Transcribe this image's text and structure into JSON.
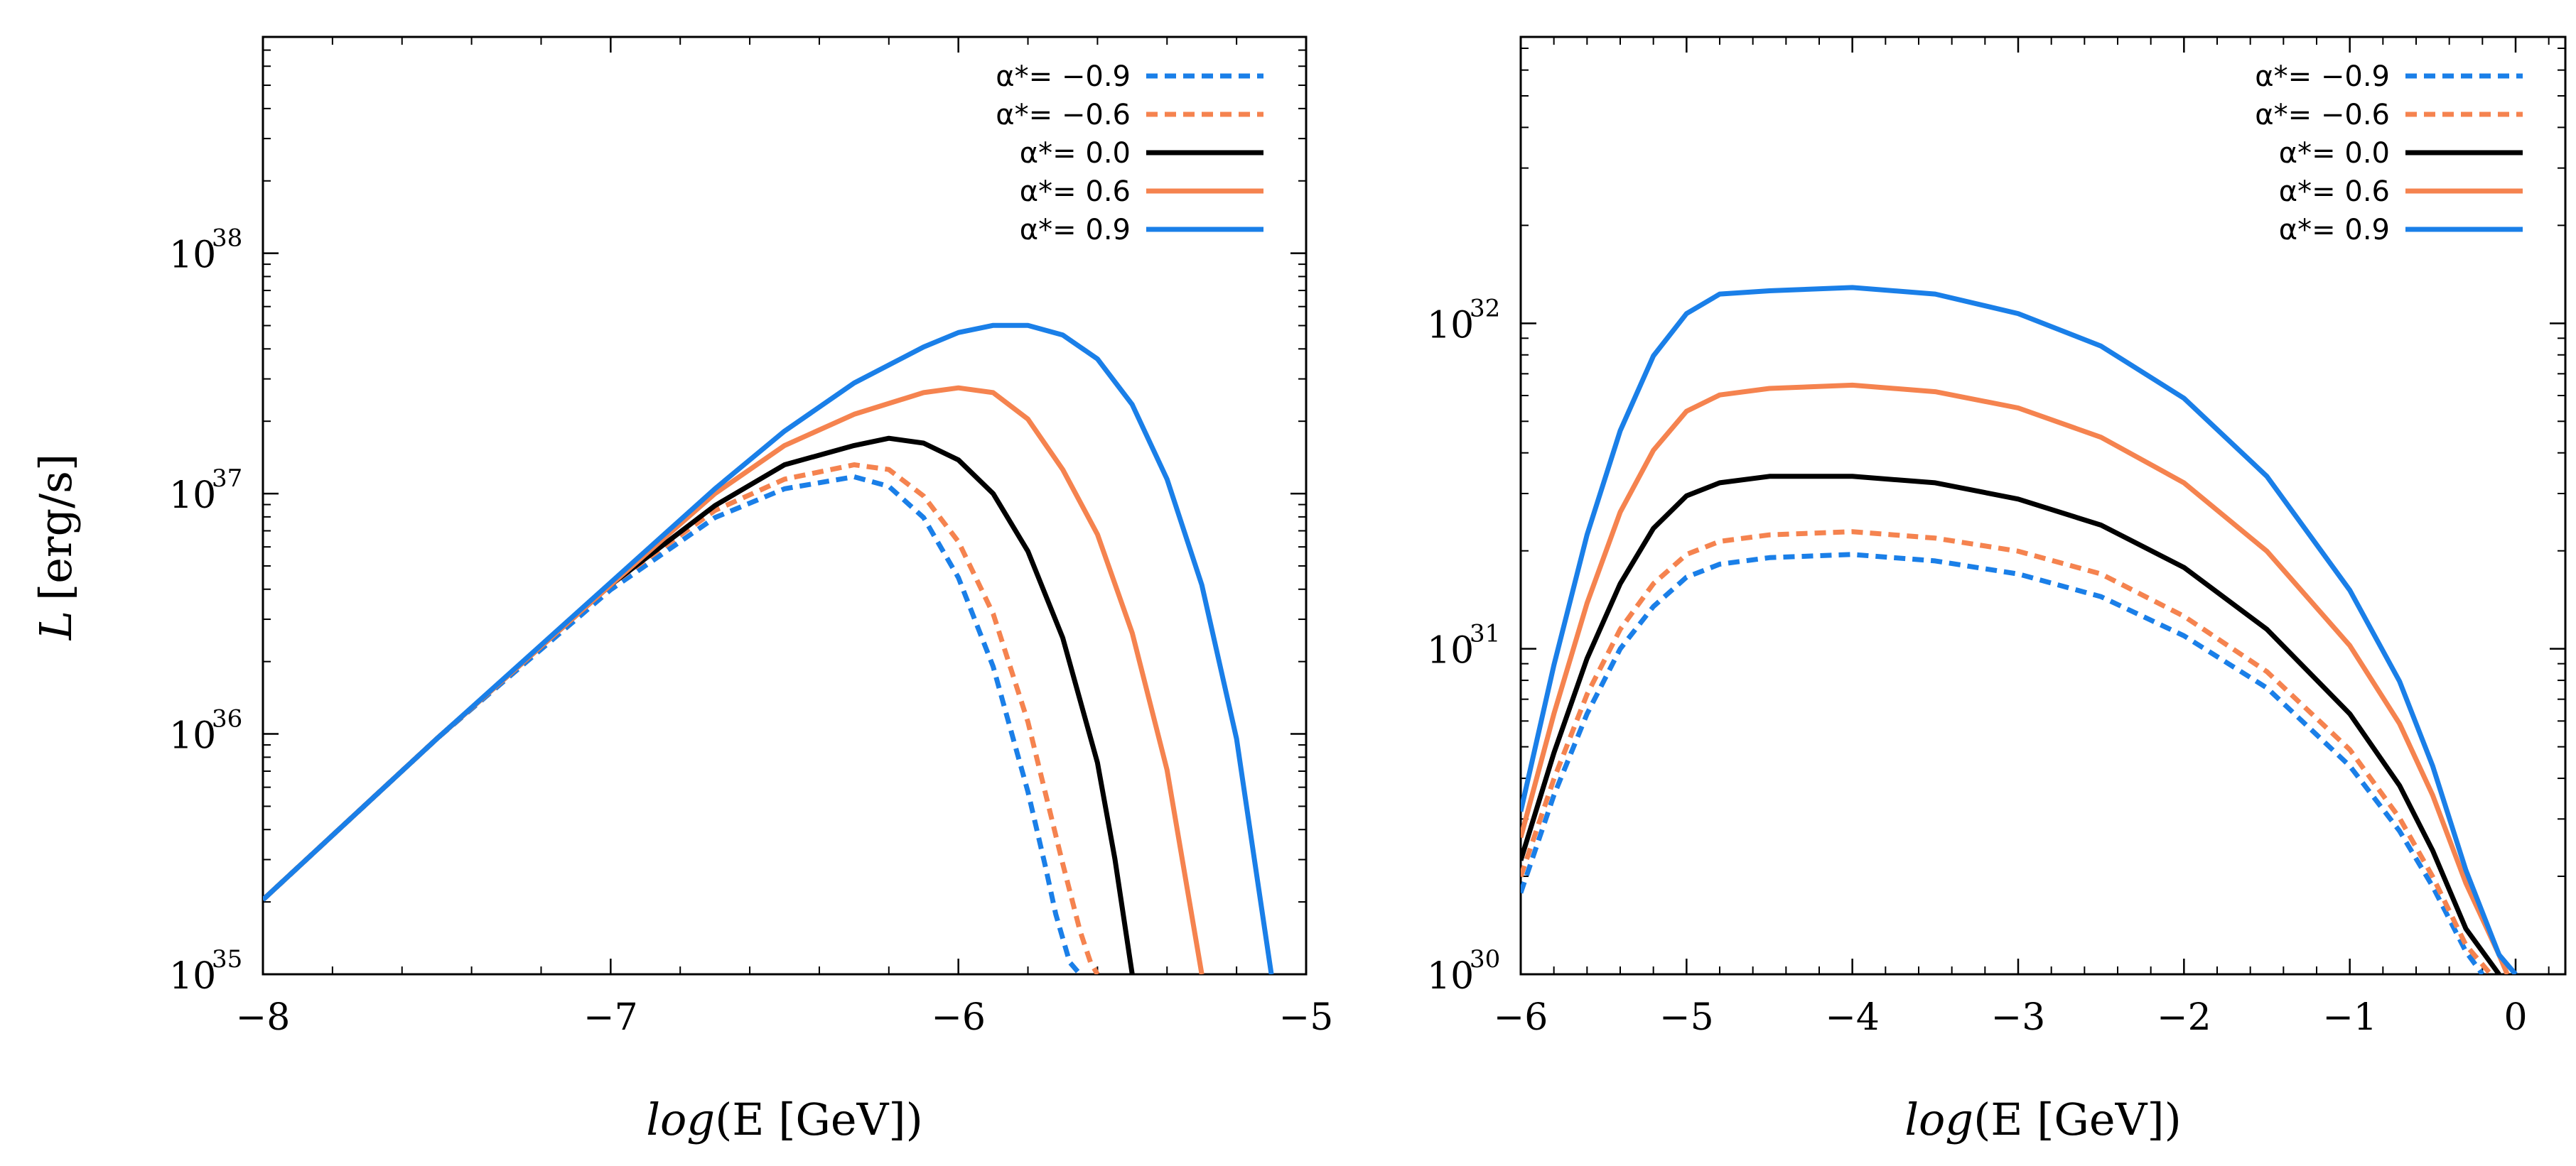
{
  "ylabel_main": "L",
  "ylabel_unit": "[erg/s]",
  "series_styles": [
    {
      "name": "α*= −0.9",
      "color": "#1a7fe8",
      "dashed": true
    },
    {
      "name": "α*= −0.6",
      "color": "#f5834f",
      "dashed": true
    },
    {
      "name": "α*=   0.0",
      "color": "#000000",
      "dashed": false
    },
    {
      "name": "α*=   0.6",
      "color": "#f5834f",
      "dashed": false
    },
    {
      "name": "α*=   0.9",
      "color": "#1a7fe8",
      "dashed": false
    }
  ],
  "chart_data": [
    {
      "type": "line",
      "xlabel_italic": "log",
      "xlabel_rest": "(E [GeV])",
      "ylabel": "L [erg/s]",
      "xlim": [
        -8,
        -5
      ],
      "ylim_log10": [
        35,
        38.9
      ],
      "y_scale": "log",
      "x_ticks": [
        -8,
        -7,
        -6,
        -5
      ],
      "x_tick_labels": [
        "−8",
        "−7",
        "−6",
        "−5"
      ],
      "y_ticks": [
        35,
        36,
        37,
        38
      ],
      "y_tick_base": "10",
      "y_tick_exponents": [
        "35",
        "36",
        "37",
        "38"
      ],
      "legend_position": "top-right",
      "series": [
        {
          "name": "α*= −0.9",
          "x": [
            -8,
            -7.5,
            -7,
            -6.7,
            -6.5,
            -6.3,
            -6.2,
            -6.1,
            -6.0,
            -5.9,
            -5.8,
            -5.75,
            -5.72,
            -5.68,
            -5.65
          ],
          "log10y": [
            35.31,
            35.98,
            36.6,
            36.9,
            37.02,
            37.07,
            37.03,
            36.9,
            36.65,
            36.28,
            35.76,
            35.45,
            35.25,
            35.05,
            35.0
          ]
        },
        {
          "name": "α*= −0.6",
          "x": [
            -8,
            -7.5,
            -7,
            -6.7,
            -6.5,
            -6.3,
            -6.2,
            -6.1,
            -6.0,
            -5.9,
            -5.8,
            -5.7,
            -5.65,
            -5.62,
            -5.6
          ],
          "log10y": [
            35.31,
            35.98,
            36.62,
            36.93,
            37.06,
            37.12,
            37.1,
            36.99,
            36.8,
            36.5,
            36.05,
            35.46,
            35.18,
            35.05,
            35.0
          ]
        },
        {
          "name": "α*=   0.0",
          "x": [
            -8,
            -7.5,
            -7,
            -6.7,
            -6.5,
            -6.3,
            -6.2,
            -6.1,
            -6.0,
            -5.9,
            -5.8,
            -5.7,
            -5.6,
            -5.55,
            -5.5
          ],
          "log10y": [
            35.31,
            35.98,
            36.62,
            36.95,
            37.12,
            37.2,
            37.23,
            37.21,
            37.14,
            37.0,
            36.76,
            36.4,
            35.88,
            35.48,
            35.0
          ]
        },
        {
          "name": "α*=   0.6",
          "x": [
            -8,
            -7.5,
            -7,
            -6.7,
            -6.5,
            -6.3,
            -6.1,
            -6.0,
            -5.9,
            -5.8,
            -5.7,
            -5.6,
            -5.5,
            -5.4,
            -5.3
          ],
          "log10y": [
            35.31,
            35.98,
            36.62,
            37.0,
            37.2,
            37.33,
            37.42,
            37.44,
            37.42,
            37.31,
            37.1,
            36.83,
            36.42,
            35.85,
            35.0
          ]
        },
        {
          "name": "α*=   0.9",
          "x": [
            -8,
            -7.5,
            -7,
            -6.7,
            -6.5,
            -6.3,
            -6.1,
            -6.0,
            -5.9,
            -5.8,
            -5.7,
            -5.6,
            -5.5,
            -5.4,
            -5.3,
            -5.2,
            -5.1
          ],
          "log10y": [
            35.31,
            35.98,
            36.63,
            37.02,
            37.26,
            37.46,
            37.61,
            37.67,
            37.7,
            37.7,
            37.66,
            37.56,
            37.37,
            37.06,
            36.62,
            35.98,
            35.0
          ]
        }
      ]
    },
    {
      "type": "line",
      "xlabel_italic": "log",
      "xlabel_rest": "(E [GeV])",
      "ylabel": "L [erg/s]",
      "xlim": [
        -6,
        0.3
      ],
      "ylim_log10": [
        30,
        32.88
      ],
      "y_scale": "log",
      "x_ticks": [
        -6,
        -5,
        -4,
        -3,
        -2,
        -1,
        0
      ],
      "x_tick_labels": [
        "−6",
        "−5",
        "−4",
        "−3",
        "−2",
        "−1",
        "0"
      ],
      "y_ticks": [
        30,
        31,
        32
      ],
      "y_tick_base": "10",
      "y_tick_exponents": [
        "30",
        "31",
        "32"
      ],
      "legend_position": "top-right",
      "series": [
        {
          "name": "α*= −0.9",
          "x": [
            -6,
            -5.8,
            -5.6,
            -5.4,
            -5.2,
            -5.0,
            -4.8,
            -4.5,
            -4.0,
            -3.5,
            -3.0,
            -2.5,
            -2.0,
            -1.5,
            -1.0,
            -0.7,
            -0.5,
            -0.3,
            -0.2
          ],
          "log10y": [
            30.25,
            30.55,
            30.8,
            31.0,
            31.13,
            31.22,
            31.26,
            31.28,
            31.29,
            31.27,
            31.23,
            31.16,
            31.04,
            30.88,
            30.64,
            30.44,
            30.27,
            30.07,
            30.0
          ]
        },
        {
          "name": "α*= −0.6",
          "x": [
            -6,
            -5.8,
            -5.6,
            -5.4,
            -5.2,
            -5.0,
            -4.8,
            -4.5,
            -4.0,
            -3.5,
            -3.0,
            -2.5,
            -2.0,
            -1.5,
            -1.0,
            -0.7,
            -0.5,
            -0.3,
            -0.15
          ],
          "log10y": [
            30.3,
            30.6,
            30.86,
            31.06,
            31.2,
            31.29,
            31.33,
            31.35,
            31.36,
            31.34,
            31.3,
            31.23,
            31.1,
            30.93,
            30.69,
            30.48,
            30.3,
            30.09,
            30.0
          ]
        },
        {
          "name": "α*=   0.0",
          "x": [
            -6,
            -5.8,
            -5.6,
            -5.4,
            -5.2,
            -5.0,
            -4.8,
            -4.5,
            -4.0,
            -3.5,
            -3.0,
            -2.5,
            -2.0,
            -1.5,
            -1.0,
            -0.7,
            -0.5,
            -0.3,
            -0.1
          ],
          "log10y": [
            30.35,
            30.68,
            30.97,
            31.2,
            31.37,
            31.47,
            31.51,
            31.53,
            31.53,
            31.51,
            31.46,
            31.38,
            31.25,
            31.06,
            30.8,
            30.58,
            30.38,
            30.14,
            30.0
          ]
        },
        {
          "name": "α*=   0.6",
          "x": [
            -6,
            -5.8,
            -5.6,
            -5.4,
            -5.2,
            -5.0,
            -4.8,
            -4.5,
            -4.0,
            -3.5,
            -3.0,
            -2.5,
            -2.0,
            -1.5,
            -1.0,
            -0.7,
            -0.5,
            -0.3,
            -0.1,
            -0.05
          ],
          "log10y": [
            30.42,
            30.8,
            31.14,
            31.42,
            31.61,
            31.73,
            31.78,
            31.8,
            31.81,
            31.79,
            31.74,
            31.65,
            31.51,
            31.3,
            31.01,
            30.77,
            30.55,
            30.28,
            30.06,
            30.0
          ]
        },
        {
          "name": "α*=   0.9",
          "x": [
            -6,
            -5.8,
            -5.6,
            -5.4,
            -5.2,
            -5.0,
            -4.8,
            -4.5,
            -4.0,
            -3.5,
            -3.0,
            -2.5,
            -2.0,
            -1.5,
            -1.0,
            -0.7,
            -0.5,
            -0.3,
            -0.1,
            0.0
          ],
          "log10y": [
            30.5,
            30.95,
            31.35,
            31.67,
            31.9,
            32.03,
            32.09,
            32.1,
            32.11,
            32.09,
            32.03,
            31.93,
            31.77,
            31.53,
            31.18,
            30.9,
            30.64,
            30.32,
            30.06,
            30.0
          ]
        }
      ]
    }
  ]
}
